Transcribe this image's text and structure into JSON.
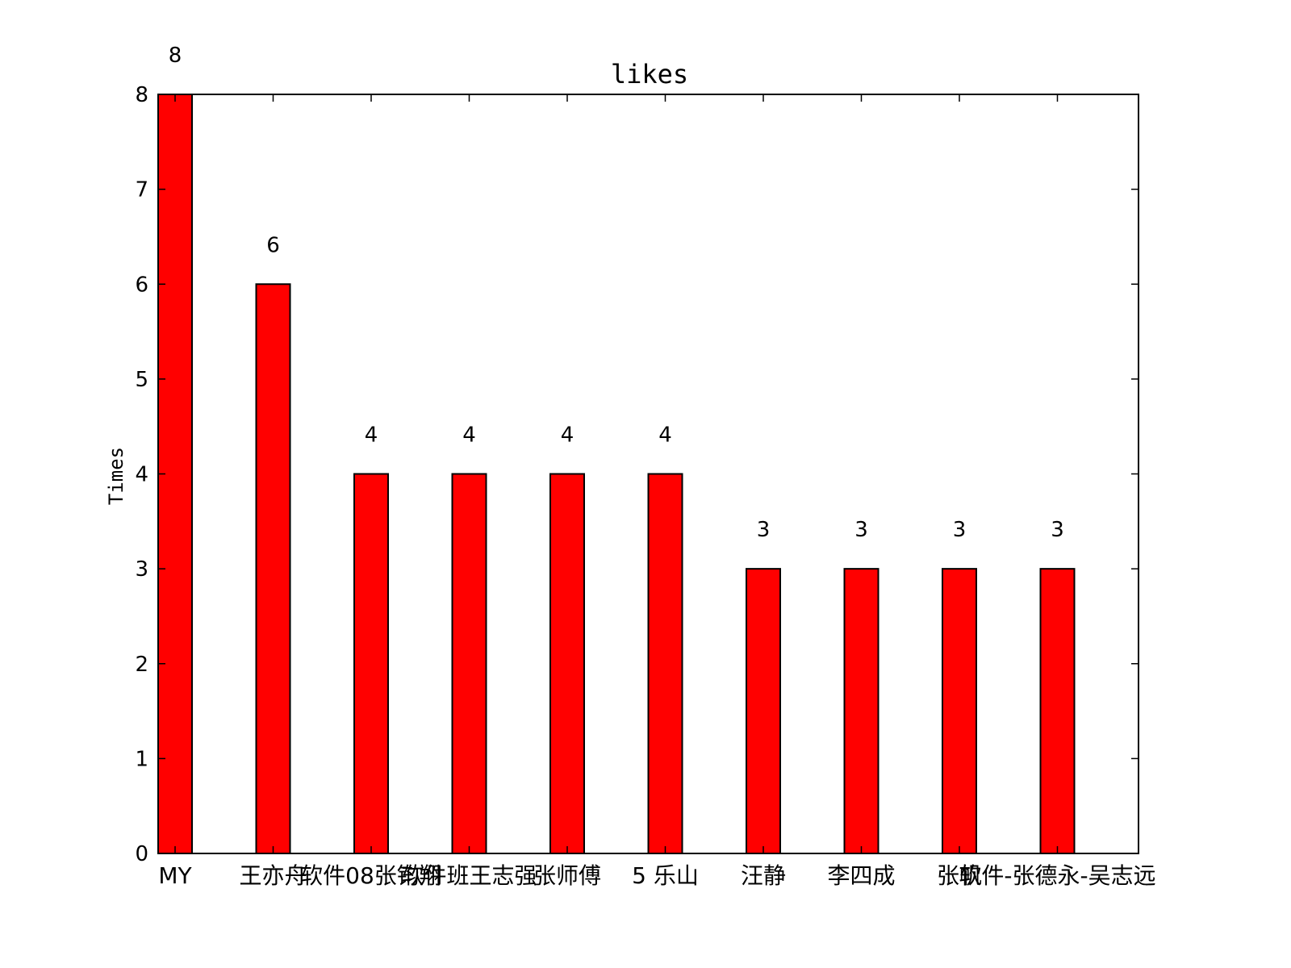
{
  "chart_data": {
    "type": "bar",
    "title": "likes",
    "ylabel": "Times",
    "xlabel": "",
    "ylim": [
      0,
      8
    ],
    "yticks": [
      0,
      1,
      2,
      3,
      4,
      5,
      6,
      7,
      8
    ],
    "categories": [
      "MY",
      "王亦舟",
      "软件08张钧翔",
      "软件班王志强",
      "张师傅",
      "5 乐山",
      "汪静",
      "李四成",
      "张帆",
      "软件-张德永-吴志远"
    ],
    "values": [
      8,
      6,
      4,
      4,
      4,
      4,
      3,
      3,
      3,
      3
    ],
    "grid": false,
    "legend": "none",
    "colors": {
      "bar": "#ff0000",
      "edge": "#000000"
    }
  }
}
